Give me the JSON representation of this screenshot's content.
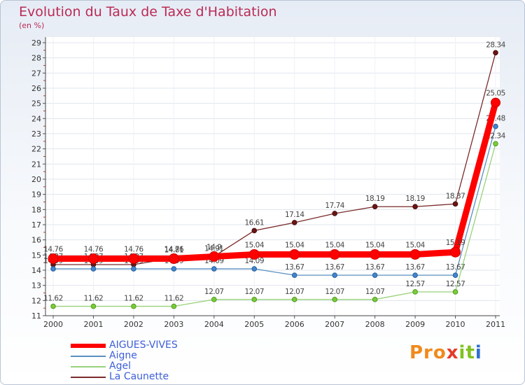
{
  "chart_data": {
    "type": "line",
    "title": "Evolution du Taux de Taxe d'Habitation",
    "subtitle": "(en %)",
    "xlabel": "",
    "ylabel": "",
    "ylim": [
      11,
      29
    ],
    "yticks": [
      11,
      12,
      13,
      14,
      15,
      16,
      17,
      18,
      19,
      20,
      21,
      22,
      23,
      24,
      25,
      26,
      27,
      28,
      29
    ],
    "categories": [
      "2000",
      "2001",
      "2002",
      "2003",
      "2004",
      "2005",
      "2006",
      "2007",
      "2008",
      "2009",
      "2010",
      "2011"
    ],
    "series": [
      {
        "name": "La Caunette",
        "color": "#7a2b2b",
        "markerFill": "#6a1515",
        "markerStroke": "#4a0d0d",
        "values": [
          14.37,
          14.37,
          14.37,
          14.81,
          14.91,
          16.61,
          17.14,
          17.74,
          18.19,
          18.19,
          18.37,
          28.34
        ],
        "labels": [
          "14.37",
          "14.37",
          "14.37",
          "14.81",
          "14.91",
          "16.61",
          "17.14",
          "17.74",
          "18.19",
          "18.19",
          "18.37",
          "28.34"
        ]
      },
      {
        "name": "Aigne",
        "color": "#5a8fc0",
        "markerFill": "#3f86cf",
        "markerStroke": "#2b5f99",
        "values": [
          14.09,
          14.09,
          14.09,
          14.09,
          14.09,
          14.09,
          13.67,
          13.67,
          13.67,
          13.67,
          13.67,
          23.48
        ],
        "labels": [
          "14.09",
          "14.09",
          "14.09",
          "14.09",
          "14.09",
          "14.09",
          "13.67",
          "13.67",
          "13.67",
          "13.67",
          "13.67",
          "23.48"
        ]
      },
      {
        "name": "Agel",
        "color": "#98d27a",
        "markerFill": "#7ccc3a",
        "markerStroke": "#4f9a20",
        "values": [
          11.62,
          11.62,
          11.62,
          11.62,
          12.07,
          12.07,
          12.07,
          12.07,
          12.07,
          12.57,
          12.57,
          22.34
        ],
        "labels": [
          "11.62",
          "11.62",
          "11.62",
          "11.62",
          "12.07",
          "12.07",
          "12.07",
          "12.07",
          "12.07",
          "12.57",
          "12.57",
          "22.34"
        ]
      },
      {
        "name": "AIGUES-VIVES",
        "color": "#ff0000",
        "markerFill": "#ff0000",
        "markerStroke": "#cc0000",
        "values": [
          14.76,
          14.76,
          14.76,
          14.76,
          14.9,
          15.04,
          15.04,
          15.04,
          15.04,
          15.04,
          15.19,
          25.05
        ],
        "labels": [
          "14.76",
          "14.76",
          "14.76",
          "14.76",
          "14.9",
          "15.04",
          "15.04",
          "15.04",
          "15.04",
          "15.04",
          "15.19",
          "25.05"
        ]
      }
    ],
    "legend": [
      "AIGUES-VIVES",
      "Aigne",
      "Agel",
      "La Caunette"
    ],
    "legend_placement": "bottom-left"
  },
  "branding": {
    "part1": "Pro",
    "part2": "x",
    "part3": "it",
    "part4": "i"
  }
}
